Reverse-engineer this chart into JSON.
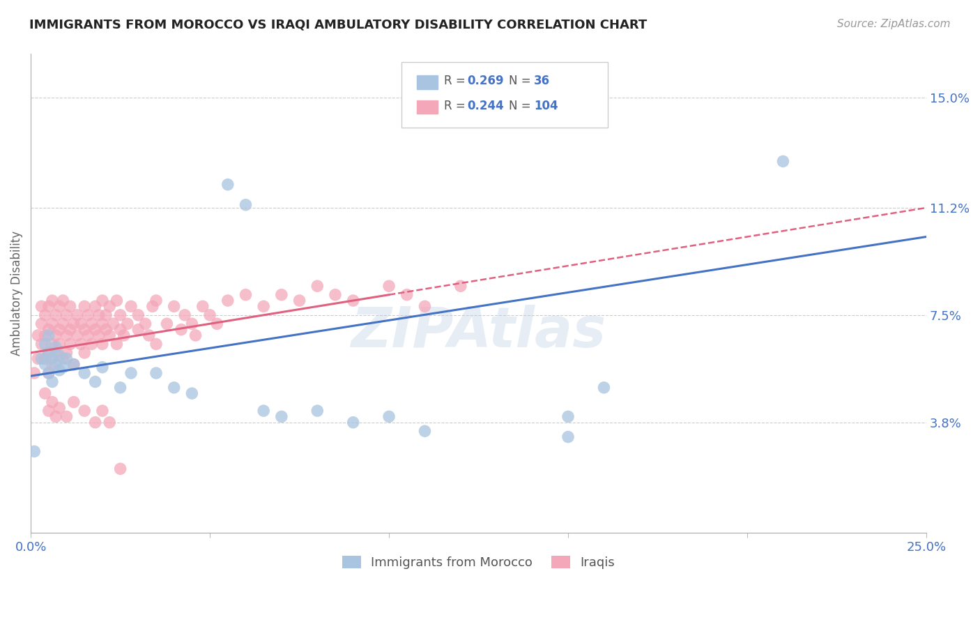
{
  "title": "IMMIGRANTS FROM MOROCCO VS IRAQI AMBULATORY DISABILITY CORRELATION CHART",
  "source": "Source: ZipAtlas.com",
  "ylabel": "Ambulatory Disability",
  "watermark": "ZIPAtlas",
  "xlim": [
    0.0,
    0.25
  ],
  "ylim": [
    0.0,
    0.165
  ],
  "ytick_labels": [
    "3.8%",
    "7.5%",
    "11.2%",
    "15.0%"
  ],
  "ytick_values": [
    0.038,
    0.075,
    0.112,
    0.15
  ],
  "xtick_positions": [
    0.0,
    0.05,
    0.1,
    0.15,
    0.2,
    0.25
  ],
  "xtick_labels": [
    "0.0%",
    "",
    "",
    "",
    "",
    "25.0%"
  ],
  "morocco_color": "#a8c4e0",
  "iraq_color": "#f4a7b9",
  "morocco_line_color": "#4472c4",
  "iraq_line_color": "#e06080",
  "legend_color_1": "#a8c4e0",
  "legend_color_2": "#f4a7b9",
  "background_color": "#ffffff",
  "grid_color": "#cccccc",
  "title_color": "#222222",
  "axis_label_color": "#666666",
  "tick_label_color": "#4472c4",
  "morocco_R": "0.269",
  "morocco_N": "36",
  "iraq_R": "0.244",
  "iraq_N": "104",
  "morocco_scatter": [
    [
      0.003,
      0.06
    ],
    [
      0.004,
      0.058
    ],
    [
      0.004,
      0.065
    ],
    [
      0.005,
      0.055
    ],
    [
      0.005,
      0.062
    ],
    [
      0.005,
      0.068
    ],
    [
      0.006,
      0.06
    ],
    [
      0.006,
      0.052
    ],
    [
      0.007,
      0.058
    ],
    [
      0.007,
      0.064
    ],
    [
      0.008,
      0.056
    ],
    [
      0.008,
      0.061
    ],
    [
      0.009,
      0.057
    ],
    [
      0.01,
      0.06
    ],
    [
      0.012,
      0.058
    ],
    [
      0.015,
      0.055
    ],
    [
      0.018,
      0.052
    ],
    [
      0.02,
      0.057
    ],
    [
      0.025,
      0.05
    ],
    [
      0.028,
      0.055
    ],
    [
      0.035,
      0.055
    ],
    [
      0.04,
      0.05
    ],
    [
      0.045,
      0.048
    ],
    [
      0.055,
      0.12
    ],
    [
      0.06,
      0.113
    ],
    [
      0.065,
      0.042
    ],
    [
      0.07,
      0.04
    ],
    [
      0.08,
      0.042
    ],
    [
      0.09,
      0.038
    ],
    [
      0.1,
      0.04
    ],
    [
      0.11,
      0.035
    ],
    [
      0.15,
      0.04
    ],
    [
      0.16,
      0.05
    ],
    [
      0.21,
      0.128
    ],
    [
      0.15,
      0.033
    ],
    [
      0.001,
      0.028
    ]
  ],
  "iraq_scatter": [
    [
      0.001,
      0.055
    ],
    [
      0.002,
      0.06
    ],
    [
      0.002,
      0.068
    ],
    [
      0.003,
      0.065
    ],
    [
      0.003,
      0.072
    ],
    [
      0.003,
      0.078
    ],
    [
      0.004,
      0.06
    ],
    [
      0.004,
      0.068
    ],
    [
      0.004,
      0.075
    ],
    [
      0.005,
      0.062
    ],
    [
      0.005,
      0.07
    ],
    [
      0.005,
      0.078
    ],
    [
      0.005,
      0.055
    ],
    [
      0.006,
      0.065
    ],
    [
      0.006,
      0.072
    ],
    [
      0.006,
      0.08
    ],
    [
      0.006,
      0.058
    ],
    [
      0.007,
      0.068
    ],
    [
      0.007,
      0.075
    ],
    [
      0.007,
      0.062
    ],
    [
      0.008,
      0.07
    ],
    [
      0.008,
      0.078
    ],
    [
      0.008,
      0.065
    ],
    [
      0.009,
      0.072
    ],
    [
      0.009,
      0.06
    ],
    [
      0.009,
      0.08
    ],
    [
      0.01,
      0.068
    ],
    [
      0.01,
      0.075
    ],
    [
      0.01,
      0.062
    ],
    [
      0.011,
      0.07
    ],
    [
      0.011,
      0.078
    ],
    [
      0.011,
      0.065
    ],
    [
      0.012,
      0.072
    ],
    [
      0.012,
      0.058
    ],
    [
      0.013,
      0.068
    ],
    [
      0.013,
      0.075
    ],
    [
      0.014,
      0.065
    ],
    [
      0.014,
      0.072
    ],
    [
      0.015,
      0.07
    ],
    [
      0.015,
      0.078
    ],
    [
      0.015,
      0.062
    ],
    [
      0.016,
      0.068
    ],
    [
      0.016,
      0.075
    ],
    [
      0.017,
      0.072
    ],
    [
      0.017,
      0.065
    ],
    [
      0.018,
      0.07
    ],
    [
      0.018,
      0.078
    ],
    [
      0.019,
      0.068
    ],
    [
      0.019,
      0.075
    ],
    [
      0.02,
      0.072
    ],
    [
      0.02,
      0.065
    ],
    [
      0.02,
      0.08
    ],
    [
      0.021,
      0.07
    ],
    [
      0.021,
      0.075
    ],
    [
      0.022,
      0.068
    ],
    [
      0.022,
      0.078
    ],
    [
      0.023,
      0.072
    ],
    [
      0.024,
      0.065
    ],
    [
      0.024,
      0.08
    ],
    [
      0.025,
      0.07
    ],
    [
      0.025,
      0.075
    ],
    [
      0.026,
      0.068
    ],
    [
      0.027,
      0.072
    ],
    [
      0.028,
      0.078
    ],
    [
      0.03,
      0.07
    ],
    [
      0.03,
      0.075
    ],
    [
      0.032,
      0.072
    ],
    [
      0.033,
      0.068
    ],
    [
      0.034,
      0.078
    ],
    [
      0.035,
      0.065
    ],
    [
      0.035,
      0.08
    ],
    [
      0.038,
      0.072
    ],
    [
      0.04,
      0.078
    ],
    [
      0.042,
      0.07
    ],
    [
      0.043,
      0.075
    ],
    [
      0.045,
      0.072
    ],
    [
      0.046,
      0.068
    ],
    [
      0.048,
      0.078
    ],
    [
      0.05,
      0.075
    ],
    [
      0.052,
      0.072
    ],
    [
      0.055,
      0.08
    ],
    [
      0.06,
      0.082
    ],
    [
      0.065,
      0.078
    ],
    [
      0.07,
      0.082
    ],
    [
      0.075,
      0.08
    ],
    [
      0.08,
      0.085
    ],
    [
      0.085,
      0.082
    ],
    [
      0.09,
      0.08
    ],
    [
      0.1,
      0.085
    ],
    [
      0.105,
      0.082
    ],
    [
      0.11,
      0.078
    ],
    [
      0.12,
      0.085
    ],
    [
      0.004,
      0.048
    ],
    [
      0.005,
      0.042
    ],
    [
      0.006,
      0.045
    ],
    [
      0.007,
      0.04
    ],
    [
      0.008,
      0.043
    ],
    [
      0.01,
      0.04
    ],
    [
      0.012,
      0.045
    ],
    [
      0.015,
      0.042
    ],
    [
      0.018,
      0.038
    ],
    [
      0.02,
      0.042
    ],
    [
      0.022,
      0.038
    ],
    [
      0.025,
      0.022
    ]
  ],
  "morocco_line": {
    "x0": 0.0,
    "x1": 0.25,
    "y0": 0.054,
    "y1": 0.102
  },
  "iraq_line_solid_x0": 0.0,
  "iraq_line_solid_x1": 0.1,
  "iraq_line_solid_y0": 0.062,
  "iraq_line_solid_y1": 0.082,
  "iraq_line_dashed_x0": 0.1,
  "iraq_line_dashed_x1": 0.25,
  "iraq_line_dashed_y0": 0.082,
  "iraq_line_dashed_y1": 0.112
}
